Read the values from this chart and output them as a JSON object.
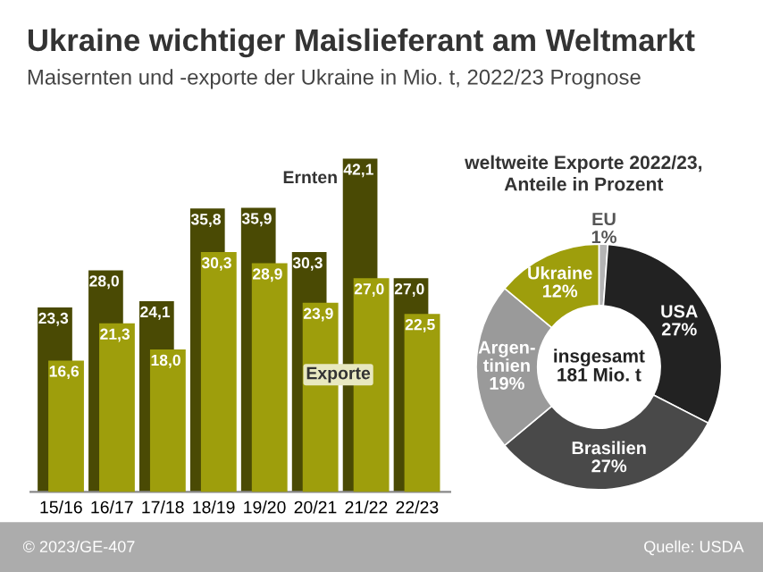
{
  "chart_data": [
    {
      "type": "bar",
      "title": "Ukraine wichtiger Maislieferant am Weltmarkt",
      "subtitle": "Maisernten und -exporte der Ukraine in Mio. t, 2022/23 Prognose",
      "categories": [
        "15/16",
        "16/17",
        "17/18",
        "18/19",
        "19/20",
        "20/21",
        "21/22",
        "22/23"
      ],
      "series": [
        {
          "name": "Ernten",
          "color": "#4a4a04",
          "values": [
            23.3,
            28.0,
            24.1,
            35.8,
            35.9,
            30.3,
            42.1,
            27.0
          ],
          "value_labels": [
            "23,3",
            "28,0",
            "24,1",
            "35,8",
            "35,9",
            "30,3",
            "42,1",
            "27,0"
          ]
        },
        {
          "name": "Exporte",
          "color": "#9e9e0c",
          "values": [
            16.6,
            21.3,
            18.0,
            30.3,
            28.9,
            23.9,
            27.0,
            22.5
          ],
          "value_labels": [
            "16,6",
            "21,3",
            "18,0",
            "30,3",
            "28,9",
            "23,9",
            "27,0",
            "22,5"
          ]
        }
      ],
      "legend": false,
      "grid": false,
      "annotations": [
        "© 2023/GE-407",
        "Quelle: USDA"
      ]
    },
    {
      "type": "donut",
      "title": "weltweite Exporte 2022/23,\nAnteile in Prozent",
      "categories": [
        "EU",
        "USA",
        "Brasilien",
        "Argen-\ntinien",
        "Ukraine"
      ],
      "values": [
        1,
        27,
        27,
        19,
        12
      ],
      "value_labels": [
        "1%",
        "27%",
        "27%",
        "19%",
        "12%"
      ],
      "colors": [
        "#b4b4b4",
        "#222222",
        "#494949",
        "#9a9a9a",
        "#9e9e0c"
      ],
      "annotations": [
        "insgesamt\n181 Mio. t"
      ]
    }
  ]
}
